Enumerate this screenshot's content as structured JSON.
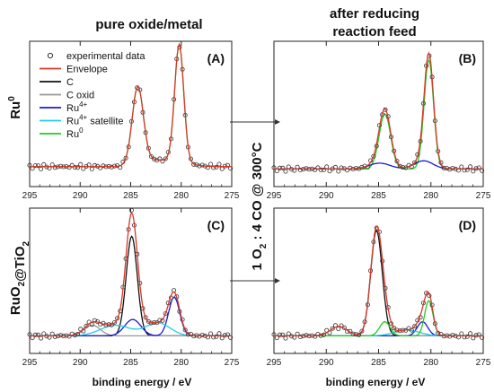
{
  "header": {
    "col_left": "pure oxide/metal",
    "col_right_line1": "after reducing",
    "col_right_line2": "reaction feed"
  },
  "rows": {
    "top_base": "Ru",
    "top_sup": "0",
    "bottom_a": "RuO",
    "bottom_b": "@TiO",
    "bottom_sub": "2"
  },
  "middle_label": {
    "p1": "1 O",
    "sub": "2",
    "p2": " : 4 CO @ 300°C"
  },
  "xlabel": "binding energy / eV",
  "legend": [
    {
      "key": "exp",
      "label": "experimental data",
      "kind": "marker",
      "color": "#333333"
    },
    {
      "key": "env",
      "label": "Envelope",
      "kind": "line",
      "color": "#d9382a"
    },
    {
      "key": "c",
      "label": "C",
      "kind": "line",
      "color": "#111111"
    },
    {
      "key": "cox",
      "label": "C oxid",
      "kind": "line",
      "color": "#999999"
    },
    {
      "key": "ru4",
      "label": "Ru",
      "sup": "4+",
      "kind": "line",
      "color": "#1a1ad6"
    },
    {
      "key": "ru4s",
      "label": "Ru",
      "sup": "4+",
      "suffix": " satellite",
      "kind": "line",
      "color": "#22ccee"
    },
    {
      "key": "ru0",
      "label": "Ru",
      "sup": "0",
      "kind": "line",
      "color": "#22cc22"
    }
  ],
  "chart_data": [
    {
      "panel": "A",
      "type": "line",
      "xlim": [
        295,
        275
      ],
      "x_reversed": true,
      "xticks": [
        295,
        290,
        285,
        280,
        275
      ],
      "components": [
        {
          "key": "ru0",
          "name": "Ru0",
          "color": "#22cc22",
          "peaks": [
            [
              284.3,
              0.65,
              0.55
            ],
            [
              280.2,
              1.0,
              0.45
            ]
          ],
          "tail": 0.06
        }
      ],
      "envelope_extra": [],
      "baseline": 0.05,
      "exp_step": 0.28
    },
    {
      "panel": "B",
      "type": "line",
      "xlim": [
        295,
        275
      ],
      "x_reversed": true,
      "xticks": [
        295,
        290,
        285,
        280,
        275
      ],
      "components": [
        {
          "key": "ru0",
          "name": "Ru0",
          "color": "#22cc22",
          "peaks": [
            [
              284.4,
              0.47,
              0.55
            ],
            [
              280.2,
              0.93,
              0.45
            ]
          ],
          "tail": 0.0
        },
        {
          "key": "ru4",
          "name": "Ru4+",
          "color": "#1a1ad6",
          "peaks": [
            [
              284.9,
              0.05,
              1.0
            ],
            [
              280.7,
              0.07,
              0.9
            ]
          ],
          "tail": 0.0
        }
      ],
      "envelope_extra": [],
      "baseline": 0.03,
      "exp_step": 0.28
    },
    {
      "panel": "C",
      "type": "line",
      "xlim": [
        295,
        275
      ],
      "x_reversed": true,
      "xticks": [
        295,
        290,
        285,
        280,
        275
      ],
      "components": [
        {
          "key": "c",
          "name": "C",
          "color": "#111111",
          "peaks": [
            [
              284.9,
              0.85,
              0.55
            ]
          ],
          "tail": 0.0
        },
        {
          "key": "cox",
          "name": "C oxid",
          "color": "#999999",
          "peaks": [
            [
              288.8,
              0.09,
              0.8
            ]
          ],
          "tail": 0.0
        },
        {
          "key": "ru4",
          "name": "Ru4+",
          "color": "#1a1ad6",
          "peaks": [
            [
              284.8,
              0.14,
              0.8
            ],
            [
              280.7,
              0.33,
              0.55
            ]
          ],
          "tail": 0.0
        },
        {
          "key": "ru4s",
          "name": "Ru4+ satellite",
          "color": "#22ccee",
          "peaks": [
            [
              286.5,
              0.09,
              1.5
            ],
            [
              282.3,
              0.11,
              1.2
            ]
          ],
          "tail": 0.0
        }
      ],
      "envelope_extra": [],
      "baseline": 0.03,
      "exp_step": 0.28
    },
    {
      "panel": "D",
      "type": "line",
      "xlim": [
        295,
        275
      ],
      "x_reversed": true,
      "xticks": [
        295,
        290,
        285,
        280,
        275
      ],
      "components": [
        {
          "key": "c",
          "name": "C",
          "color": "#111111",
          "peaks": [
            [
              285.2,
              0.9,
              0.55
            ]
          ],
          "tail": 0.0
        },
        {
          "key": "cox",
          "name": "C oxid",
          "color": "#999999",
          "peaks": [
            [
              288.8,
              0.08,
              0.8
            ]
          ],
          "tail": 0.0
        },
        {
          "key": "ru4",
          "name": "Ru4+",
          "color": "#1a1ad6",
          "peaks": [
            [
              280.8,
              0.12,
              0.5
            ]
          ],
          "tail": 0.0
        },
        {
          "key": "ru4s",
          "name": "Ru4+ satellite",
          "color": "#22ccee",
          "peaks": [
            [
              282.3,
              0.05,
              1.2
            ]
          ],
          "tail": 0.0
        },
        {
          "key": "ru0",
          "name": "Ru0",
          "color": "#22cc22",
          "peaks": [
            [
              284.4,
              0.12,
              0.5
            ],
            [
              280.2,
              0.3,
              0.4
            ]
          ],
          "tail": 0.0
        }
      ],
      "envelope_extra": [],
      "baseline": 0.03,
      "exp_step": 0.28
    }
  ]
}
